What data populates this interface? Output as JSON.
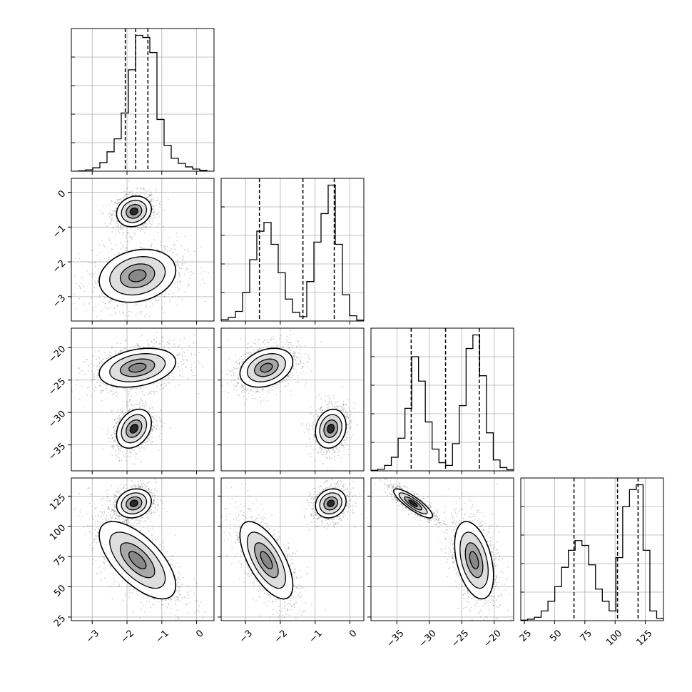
{
  "chart_data": {
    "type": "corner",
    "grid": true,
    "parameters": [
      {
        "range": [
          -3.6,
          0.5
        ],
        "ticks": [
          -3,
          -2,
          -1,
          0
        ],
        "tick_labels": [
          "−3",
          "−2",
          "−1",
          "0"
        ],
        "quantiles": [
          -2.05,
          -1.75,
          -1.4
        ]
      },
      {
        "range": [
          -3.7,
          0.4
        ],
        "ticks": [
          -3,
          -2,
          -1,
          0
        ],
        "tick_labels": [
          "−3",
          "−2",
          "−1",
          "0"
        ],
        "quantiles": [
          -2.6,
          -1.35,
          -0.45
        ]
      },
      {
        "range": [
          -39,
          -17
        ],
        "ticks": [
          -35,
          -30,
          -25,
          -20
        ],
        "tick_labels": [
          "−35",
          "−30",
          "−25",
          "−20"
        ],
        "quantiles": [
          -32.8,
          -27.5,
          -22.3
        ]
      },
      {
        "range": [
          22,
          140
        ],
        "ticks": [
          25,
          50,
          75,
          100,
          125
        ],
        "tick_labels": [
          "25",
          "50",
          "75",
          "100",
          "125"
        ],
        "quantiles": [
          66,
          102,
          119
        ]
      }
    ],
    "histograms": [
      [
        0,
        1,
        3,
        8,
        20,
        45,
        75,
        135,
        235,
        315,
        310,
        275,
        120,
        60,
        30,
        18,
        10,
        5,
        2,
        0
      ],
      [
        3,
        8,
        22,
        65,
        140,
        205,
        225,
        175,
        110,
        50,
        20,
        10,
        90,
        180,
        245,
        310,
        175,
        60,
        12,
        2
      ],
      [
        1,
        3,
        10,
        25,
        60,
        115,
        210,
        165,
        90,
        40,
        15,
        10,
        50,
        120,
        225,
        250,
        175,
        70,
        20,
        6,
        2
      ],
      [
        1,
        3,
        7,
        20,
        40,
        70,
        110,
        145,
        165,
        155,
        115,
        65,
        40,
        20,
        130,
        235,
        270,
        280,
        145,
        20,
        5
      ]
    ],
    "clusters": [
      {
        "mean": [
          -1.8,
          -0.55,
          -32.5,
          119
        ],
        "sd": [
          0.25,
          0.22,
          1.5,
          6
        ]
      },
      {
        "mean": [
          -1.7,
          -2.4,
          -23.1,
          72
        ],
        "sd": [
          0.55,
          0.38,
          1.5,
          16
        ]
      }
    ]
  }
}
